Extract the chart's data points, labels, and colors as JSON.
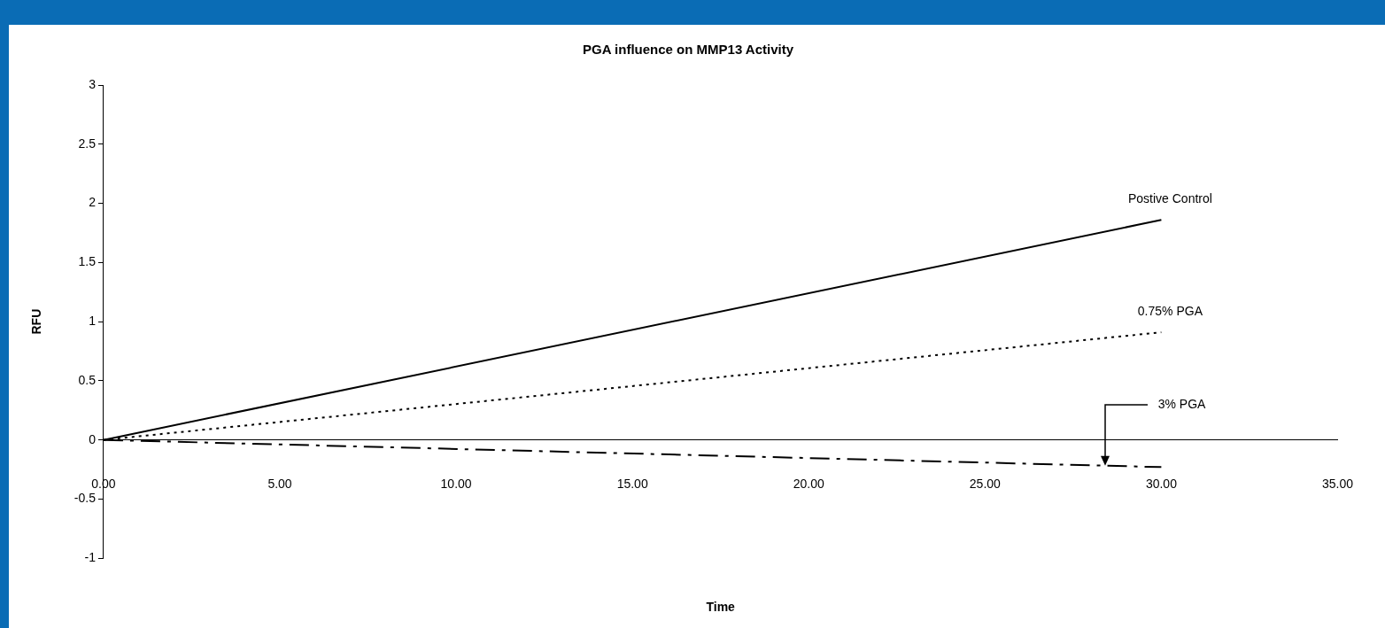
{
  "chart_data": {
    "type": "line",
    "title": "PGA influence on MMP13 Activity",
    "xlabel": "Time",
    "ylabel": "RFU",
    "xlim": [
      0,
      35
    ],
    "xticks": [
      {
        "value": 0,
        "label": "0.00"
      },
      {
        "value": 5,
        "label": "5.00"
      },
      {
        "value": 10,
        "label": "10.00"
      },
      {
        "value": 15,
        "label": "15.00"
      },
      {
        "value": 20,
        "label": "20.00"
      },
      {
        "value": 25,
        "label": "25.00"
      },
      {
        "value": 30,
        "label": "30.00"
      },
      {
        "value": 35,
        "label": "35.00"
      }
    ],
    "ylim": [
      -1,
      3
    ],
    "yticks": [
      -1,
      -0.5,
      0,
      0.5,
      1,
      1.5,
      2,
      2.5,
      3
    ],
    "x": [
      0,
      30
    ],
    "legend": false,
    "marker": "none",
    "series": [
      {
        "name": "Postive Control",
        "color": "#000000",
        "line_style": "solid",
        "values": [
          0,
          1.86
        ]
      },
      {
        "name": "0.75% PGA",
        "color": "#000000",
        "line_style": "dotted",
        "values": [
          0,
          0.91
        ]
      },
      {
        "name": "3% PGA",
        "color": "#000000",
        "line_style": "dashed",
        "values": [
          0,
          -0.23
        ]
      }
    ]
  }
}
